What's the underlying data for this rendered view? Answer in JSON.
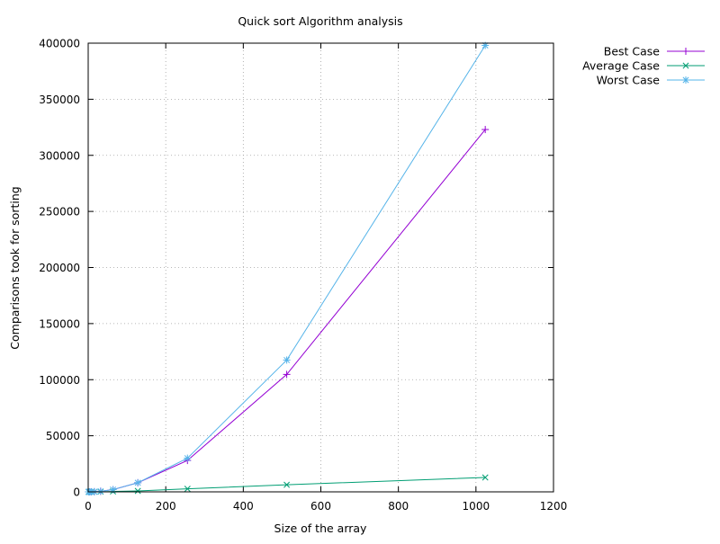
{
  "chart_data": {
    "type": "line",
    "title": "Quick sort Algorithm analysis",
    "xlabel": "Size of the array",
    "ylabel": "Comparisons took for sorting",
    "xlim": [
      0,
      1200
    ],
    "ylim": [
      0,
      400000
    ],
    "xticks": [
      0,
      200,
      400,
      600,
      800,
      1000,
      1200
    ],
    "yticks": [
      0,
      50000,
      100000,
      150000,
      200000,
      250000,
      300000,
      350000,
      400000
    ],
    "grid": true,
    "legend_position": "outside top-right",
    "x": [
      1,
      2,
      4,
      8,
      16,
      32,
      64,
      128,
      256,
      512,
      1024
    ],
    "series": [
      {
        "name": "Best Case",
        "color": "#9400d3",
        "marker": "plus",
        "values": [
          0,
          1,
          6,
          28,
          120,
          496,
          2016,
          8128,
          28000,
          104700,
          323000
        ]
      },
      {
        "name": "Average Case",
        "color": "#009e73",
        "marker": "cross",
        "values": [
          0,
          1,
          5,
          17,
          48,
          130,
          330,
          800,
          2700,
          6300,
          12800
        ]
      },
      {
        "name": "Worst Case",
        "color": "#56b4e9",
        "marker": "star",
        "values": [
          0,
          1,
          6,
          28,
          120,
          496,
          2016,
          8128,
          30000,
          117500,
          398000
        ]
      }
    ]
  }
}
